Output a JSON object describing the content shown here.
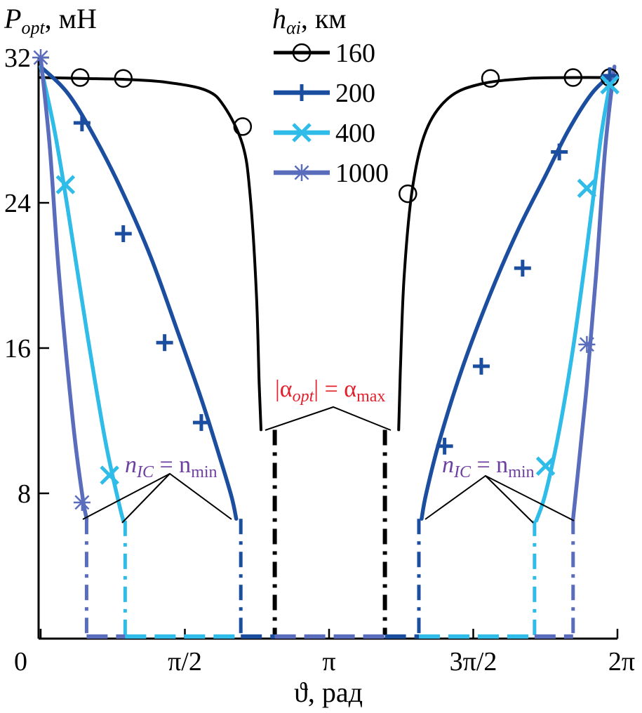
{
  "chart_data": {
    "type": "line",
    "ylabel": {
      "main": "P",
      "sub": "opt",
      "unit": ", мН"
    },
    "xlabel": "ϑ, рад",
    "legend_title": {
      "main": "h",
      "sub": "αi",
      "unit": ", км"
    },
    "legend_position": "top-center",
    "xlim": [
      0,
      6.2832
    ],
    "ylim": [
      0,
      32
    ],
    "x_ticks": [
      {
        "value": 0,
        "label": "0"
      },
      {
        "value": 1.5708,
        "label": "π/2"
      },
      {
        "value": 3.1416,
        "label": "π"
      },
      {
        "value": 4.7124,
        "label": "3π/2"
      },
      {
        "value": 6.2832,
        "label": "2π"
      }
    ],
    "y_ticks": [
      {
        "value": 8,
        "label": "8"
      },
      {
        "value": 16,
        "label": "16"
      },
      {
        "value": 24,
        "label": "24"
      },
      {
        "value": 32,
        "label": "32"
      }
    ],
    "series": [
      {
        "name": "160",
        "color": "#000000",
        "marker": "circle",
        "width": 4,
        "segments": [
          {
            "x": [
              0,
              0.45,
              0.9,
              1.35,
              1.8,
              2.0,
              2.2,
              2.28,
              2.35,
              2.38,
              2.4
            ],
            "y": [
              30.9,
              30.85,
              30.8,
              30.65,
              30.2,
              29.3,
              27.2,
              24.5,
              19.0,
              14.0,
              11.5
            ]
          },
          {
            "x": [
              3.9,
              3.92,
              3.96,
              4.05,
              4.2,
              4.45,
              4.8,
              5.3,
              5.8,
              6.2
            ],
            "y": [
              11.5,
              15.0,
              20.0,
              24.8,
              28.0,
              29.8,
              30.55,
              30.85,
              30.9,
              30.9
            ]
          }
        ],
        "dash_x": [
          2.55,
          3.75
        ],
        "dash_y_top": 11.5,
        "markers_x": [
          0.43,
          0.9,
          2.2,
          4.0,
          4.9,
          5.8,
          6.2
        ],
        "markers_y": [
          30.9,
          30.85,
          28.2,
          24.5,
          30.85,
          30.9,
          30.9
        ]
      },
      {
        "name": "200",
        "color": "#1c4ea0",
        "marker": "plus",
        "width": 5.5,
        "segments": [
          {
            "x": [
              0,
              0.3,
              0.6,
              0.9,
              1.2,
              1.5,
              1.75,
              1.95,
              2.08,
              2.13
            ],
            "y": [
              31.5,
              30.0,
              27.5,
              24.5,
              21.0,
              16.8,
              13.2,
              10.0,
              7.8,
              6.6
            ]
          },
          {
            "x": [
              4.15,
              4.2,
              4.35,
              4.6,
              4.9,
              5.2,
              5.5,
              5.75,
              6.0,
              6.2
            ],
            "y": [
              6.6,
              8.0,
              11.0,
              15.0,
              19.0,
              22.5,
              25.5,
              28.0,
              30.0,
              31.0
            ]
          }
        ],
        "dash_x": [
          2.18,
          4.12
        ],
        "dash_y_top": 6.6,
        "markers_x": [
          0.45,
          0.9,
          1.35,
          1.75,
          4.4,
          4.8,
          5.25,
          5.65,
          6.2
        ],
        "markers_y": [
          28.4,
          22.3,
          16.3,
          11.9,
          10.6,
          15.0,
          20.4,
          26.8,
          31.0
        ]
      },
      {
        "name": "400",
        "color": "#2fbce8",
        "marker": "x",
        "width": 5.5,
        "segments": [
          {
            "x": [
              0,
              0.15,
              0.3,
              0.5,
              0.7,
              0.85,
              0.9
            ],
            "y": [
              31.5,
              28.0,
              23.5,
              17.0,
              11.0,
              7.5,
              6.5
            ]
          },
          {
            "x": [
              5.4,
              5.5,
              5.65,
              5.8,
              5.95,
              6.1,
              6.2
            ],
            "y": [
              6.5,
              8.0,
              11.5,
              16.0,
              21.5,
              27.5,
              30.5
            ]
          }
        ],
        "dash_x": [
          0.92,
          5.38
        ],
        "dash_y_top": 6.5,
        "markers_x": [
          0.27,
          0.75,
          5.5,
          5.95,
          6.2
        ],
        "markers_y": [
          25.0,
          9.0,
          9.5,
          24.8,
          30.5
        ]
      },
      {
        "name": "1000",
        "color": "#5a6cbc",
        "marker": "star",
        "width": 5.5,
        "segments": [
          {
            "x": [
              0,
              0.1,
              0.2,
              0.35,
              0.45,
              0.5
            ],
            "y": [
              32.0,
              27.0,
              20.0,
              12.0,
              8.0,
              6.6
            ]
          },
          {
            "x": [
              5.8,
              5.85,
              5.95,
              6.05,
              6.15,
              6.25
            ],
            "y": [
              6.6,
              9.0,
              14.0,
              20.0,
              27.0,
              31.5
            ]
          }
        ],
        "dash_x": [
          0.5,
          5.8
        ],
        "dash_y_top": 6.6,
        "markers_x": [
          0,
          0.45,
          5.95
        ],
        "markers_y": [
          32.0,
          7.5,
          16.2
        ]
      }
    ],
    "annotations": {
      "alpha": {
        "text_lhs": "|α",
        "text_lhs_sub": "opt",
        "text_mid": "| = α",
        "text_rhs_sub": "max"
      },
      "n_left": {
        "text_main": "n",
        "text_sub": "IC",
        "text_mid": " = n",
        "text_sub2": "min"
      },
      "n_right": {
        "text_main": "n",
        "text_sub": "IC",
        "text_mid": " = n",
        "text_sub2": "min"
      }
    }
  }
}
